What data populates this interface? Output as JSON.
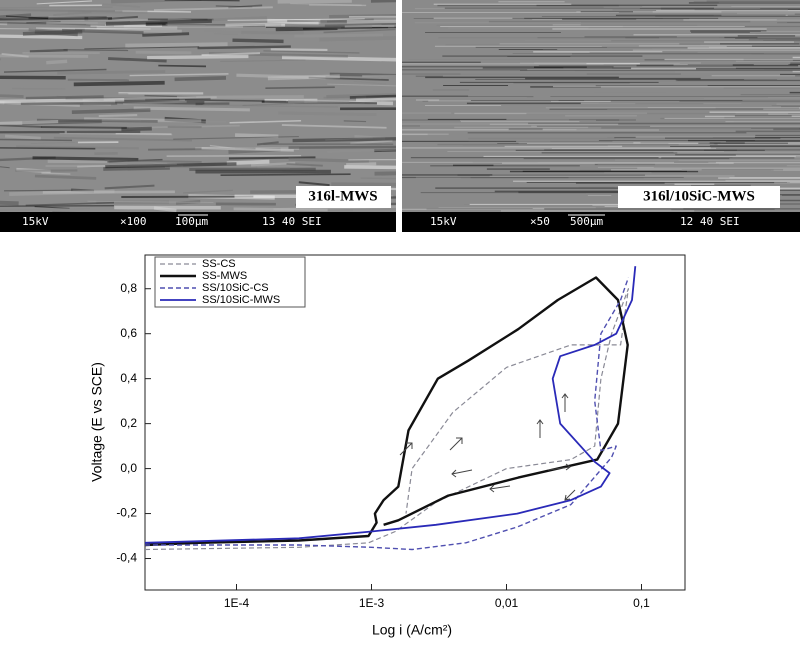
{
  "images": [
    {
      "label": "316l-MWS",
      "info": [
        "15kV",
        "×100",
        "100μm",
        "13 40 SEI"
      ]
    },
    {
      "label": "316l/10SiC-MWS",
      "info": [
        "15kV",
        "×50",
        "500μm",
        "12 40 SEI"
      ]
    }
  ],
  "chart_data": {
    "type": "line",
    "xlabel": "Log i (A/cm²)",
    "ylabel": "Voltage (E vs SCE)",
    "xscale": "log",
    "xlim": [
      2.1e-05,
      0.21
    ],
    "ylim": [
      -0.54,
      0.95
    ],
    "xticks": [
      {
        "value": 0.0001,
        "label": "1E-4"
      },
      {
        "value": 0.001,
        "label": "1E-3"
      },
      {
        "value": 0.01,
        "label": "0,01"
      },
      {
        "value": 0.1,
        "label": "0,1"
      }
    ],
    "yticks": [
      {
        "value": -0.4,
        "label": "-0,4"
      },
      {
        "value": -0.2,
        "label": "-0,2"
      },
      {
        "value": 0,
        "label": "0,0"
      },
      {
        "value": 0.2,
        "label": "0,2"
      },
      {
        "value": 0.4,
        "label": "0,4"
      },
      {
        "value": 0.6,
        "label": "0,6"
      },
      {
        "value": 0.8,
        "label": "0,8"
      }
    ],
    "legend": "upper left",
    "series": [
      {
        "name": "SS-CS",
        "color": "#8a8a96",
        "dashed": true,
        "width": 1.2,
        "x": [
          2.1e-05,
          0.00029,
          0.00095,
          0.0015,
          0.003,
          0.01,
          0.03,
          0.045,
          0.05,
          0.06,
          0.08,
          0.07,
          0.03,
          0.01,
          0.004,
          0.002,
          0.0018
        ],
        "values": [
          -0.36,
          -0.35,
          -0.33,
          -0.28,
          -0.15,
          0.0,
          0.04,
          0.1,
          0.4,
          0.6,
          0.8,
          0.55,
          0.55,
          0.45,
          0.25,
          0.0,
          -0.2
        ]
      },
      {
        "name": "SS-MWS",
        "color": "#111111",
        "dashed": false,
        "width": 2.4,
        "x": [
          2.1e-05,
          5.3e-05,
          0.00029,
          0.00095,
          0.00109,
          0.00106,
          0.00123,
          0.00158,
          0.00188,
          0.0031,
          0.0052,
          0.0122,
          0.024,
          0.046,
          0.067,
          0.079,
          0.067,
          0.047,
          0.0122,
          0.0037,
          0.00158,
          0.00123
        ],
        "values": [
          -0.34,
          -0.33,
          -0.32,
          -0.3,
          -0.24,
          -0.2,
          -0.14,
          -0.08,
          0.17,
          0.4,
          0.48,
          0.62,
          0.75,
          0.85,
          0.75,
          0.55,
          0.2,
          0.04,
          -0.04,
          -0.12,
          -0.23,
          -0.25
        ]
      },
      {
        "name": "SS/10SiC-CS",
        "color": "#4f4fb0",
        "dashed": true,
        "width": 1.4,
        "x": [
          2.1e-05,
          0.00029,
          0.001,
          0.002,
          0.005,
          0.012,
          0.03,
          0.06,
          0.065,
          0.05,
          0.045,
          0.05,
          0.07,
          0.08
        ],
        "values": [
          -0.34,
          -0.34,
          -0.35,
          -0.36,
          -0.33,
          -0.26,
          -0.16,
          0.05,
          0.1,
          0.08,
          0.3,
          0.6,
          0.75,
          0.85
        ]
      },
      {
        "name": "SS/10SiC-MWS",
        "color": "#2a2ab8",
        "dashed": false,
        "width": 1.8,
        "x": [
          2.1e-05,
          0.00029,
          0.001,
          0.003,
          0.012,
          0.03,
          0.05,
          0.058,
          0.045,
          0.025,
          0.022,
          0.025,
          0.045,
          0.065,
          0.085,
          0.09
        ],
        "values": [
          -0.33,
          -0.31,
          -0.28,
          -0.25,
          -0.2,
          -0.14,
          -0.08,
          -0.02,
          0.03,
          0.2,
          0.4,
          0.5,
          0.55,
          0.6,
          0.75,
          0.9
        ]
      }
    ]
  }
}
